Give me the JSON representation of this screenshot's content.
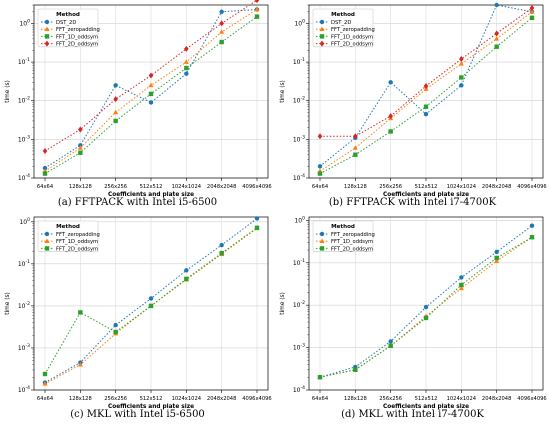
{
  "chart_data": [
    {
      "type": "line",
      "caption": "(a)  FFTPACK with Intel i5-6500",
      "xlabel": "Coefficients and plate size",
      "ylabel": "time (s)",
      "yscale": "log",
      "ylim": [
        0.0001,
        3
      ],
      "categories": [
        "64x64",
        "128x128",
        "256x256",
        "512x512",
        "1024x1024",
        "2048x2048",
        "4096x4096"
      ],
      "legend": {
        "title": "Method",
        "placement": "upper-left"
      },
      "series": [
        {
          "name": "DST_2D",
          "color": "#1f77b4",
          "marker": "circle",
          "values": [
            0.00018,
            0.0007,
            0.025,
            0.009,
            0.05,
            2.0,
            2.3
          ]
        },
        {
          "name": "FFT_zeropadding",
          "color": "#ff7f0e",
          "marker": "triangle",
          "values": [
            0.00015,
            0.0006,
            0.005,
            0.025,
            0.1,
            0.6,
            2.3
          ]
        },
        {
          "name": "FFT_1D_oddsym",
          "color": "#2ca02c",
          "marker": "square",
          "values": [
            0.00013,
            0.00045,
            0.003,
            0.015,
            0.07,
            0.33,
            1.5
          ]
        },
        {
          "name": "FFT_2D_oddsym",
          "color": "#d62728",
          "marker": "diamond",
          "values": [
            0.0005,
            0.0018,
            0.011,
            0.045,
            0.22,
            1.0,
            4.0
          ]
        }
      ]
    },
    {
      "type": "line",
      "caption": "(b)  FFTPACK with Intel i7-4700K",
      "xlabel": "Coefficients and plate size",
      "ylabel": "time (s)",
      "yscale": "log",
      "ylim": [
        0.0001,
        3
      ],
      "categories": [
        "64x64",
        "128x128",
        "256x256",
        "512x512",
        "1024x1024",
        "2048x2048",
        "4096x4096"
      ],
      "legend": {
        "title": "Method",
        "placement": "upper-left"
      },
      "series": [
        {
          "name": "DST_2D",
          "color": "#1f77b4",
          "marker": "circle",
          "values": [
            0.0002,
            0.0011,
            0.03,
            0.0045,
            0.025,
            3.0,
            2.0
          ]
        },
        {
          "name": "FFT_zeropadding",
          "color": "#ff7f0e",
          "marker": "triangle",
          "values": [
            0.00015,
            0.0006,
            0.0035,
            0.02,
            0.09,
            0.4,
            2.0
          ]
        },
        {
          "name": "FFT_1D_oddsym",
          "color": "#2ca02c",
          "marker": "square",
          "values": [
            0.00013,
            0.0004,
            0.0016,
            0.007,
            0.04,
            0.25,
            1.4
          ]
        },
        {
          "name": "FFT_2D_oddsym",
          "color": "#d62728",
          "marker": "diamond",
          "values": [
            0.0012,
            0.0012,
            0.004,
            0.024,
            0.12,
            0.55,
            2.5
          ]
        }
      ]
    },
    {
      "type": "line",
      "caption": "(c)  MKL with Intel i5-6500",
      "xlabel": "Coefficients and plate size",
      "ylabel": "time (s)",
      "yscale": "log",
      "ylim": [
        0.0001,
        1.3
      ],
      "categories": [
        "64x64",
        "128x128",
        "256x256",
        "512x512",
        "1024x1024",
        "2048x2048",
        "4096x4096"
      ],
      "legend": {
        "title": "Method",
        "placement": "upper-left"
      },
      "series": [
        {
          "name": "FFT_zeropadding",
          "color": "#1f77b4",
          "marker": "circle",
          "values": [
            0.00015,
            0.00045,
            0.0035,
            0.015,
            0.07,
            0.28,
            1.2
          ]
        },
        {
          "name": "FFT_1D_oddsym",
          "color": "#ff7f0e",
          "marker": "triangle",
          "values": [
            0.00014,
            0.0004,
            0.0022,
            0.01,
            0.042,
            0.17,
            0.7
          ]
        },
        {
          "name": "FFT_2D_oddsym",
          "color": "#2ca02c",
          "marker": "square",
          "values": [
            0.00024,
            0.007,
            0.0024,
            0.01,
            0.044,
            0.18,
            0.72
          ]
        }
      ]
    },
    {
      "type": "line",
      "caption": "(d)  MKL with Intel i7-4700K",
      "xlabel": "Coefficients and plate size",
      "ylabel": "time (s)",
      "yscale": "log",
      "ylim": [
        0.0001,
        1.2
      ],
      "categories": [
        "64x64",
        "128x128",
        "256x256",
        "512x512",
        "1024x1024",
        "2048x2048",
        "4096x4096"
      ],
      "legend": {
        "title": "Method",
        "placement": "upper-left"
      },
      "series": [
        {
          "name": "FFT_zeropadding",
          "color": "#1f77b4",
          "marker": "circle",
          "values": [
            0.0002,
            0.00035,
            0.0014,
            0.009,
            0.045,
            0.18,
            0.75
          ]
        },
        {
          "name": "FFT_1D_oddsym",
          "color": "#ff7f0e",
          "marker": "triangle",
          "values": [
            0.0002,
            0.0003,
            0.0011,
            0.0055,
            0.025,
            0.11,
            0.4
          ]
        },
        {
          "name": "FFT_2D_oddsym",
          "color": "#2ca02c",
          "marker": "square",
          "values": [
            0.0002,
            0.0003,
            0.0011,
            0.005,
            0.03,
            0.13,
            0.4
          ]
        }
      ]
    }
  ]
}
